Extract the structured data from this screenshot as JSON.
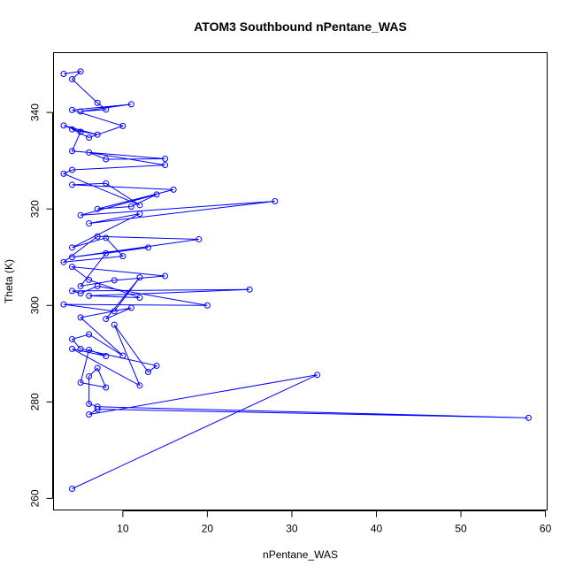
{
  "chart_data": {
    "type": "line",
    "title": "ATOM3 Southbound nPentane_WAS",
    "xlabel": "nPentane_WAS",
    "ylabel": "Theta (K)",
    "xlim": [
      1.8,
      60.2
    ],
    "ylim": [
      257.6,
      352.4
    ],
    "xticks": [
      10,
      20,
      30,
      40,
      50,
      60
    ],
    "yticks": [
      260,
      280,
      300,
      320,
      340
    ],
    "series": [
      {
        "name": "nPentane_WAS vs Theta",
        "color": "#0000ff",
        "marker": "open-circle",
        "x": [
          4,
          33,
          6,
          7,
          58,
          7,
          6,
          6,
          7,
          8,
          5,
          6,
          8,
          4,
          12,
          9,
          13,
          14,
          5,
          4,
          6,
          10,
          5,
          11,
          8,
          12,
          9,
          3,
          20,
          7,
          5,
          4,
          25,
          6,
          12,
          6,
          4,
          15,
          9,
          5,
          8,
          13,
          4,
          19,
          7,
          3,
          10,
          8,
          4,
          12,
          6,
          28,
          5,
          14,
          11,
          7,
          16,
          4,
          8,
          12,
          3,
          4,
          15,
          6,
          8,
          15,
          4,
          5,
          3,
          7,
          4,
          6,
          10,
          4,
          11,
          5,
          8,
          7,
          4,
          5,
          3
        ],
        "y": [
          262,
          285.6,
          277.4,
          278.5,
          276.7,
          279,
          279.6,
          285.3,
          287,
          283,
          284,
          290.8,
          289.5,
          291,
          283.4,
          296,
          286.2,
          287.5,
          291,
          293,
          294,
          289.6,
          297.5,
          299.5,
          297.2,
          305.8,
          298.8,
          300.2,
          300,
          304,
          302.5,
          303,
          303.3,
          302,
          301.6,
          305.3,
          308,
          306.1,
          305.2,
          304,
          310.8,
          312,
          310,
          313.7,
          314.3,
          309,
          310.2,
          314,
          312,
          319,
          317,
          321.6,
          318.7,
          323,
          320.5,
          320,
          324,
          325,
          325.3,
          320.8,
          327.3,
          328.1,
          329.1,
          331.7,
          330.3,
          330.4,
          332,
          336,
          337.3,
          335.4,
          336.5,
          334.8,
          337.2,
          340.5,
          341.7,
          340.2,
          340.6,
          342,
          346.9,
          348.5,
          348
        ]
      }
    ]
  }
}
